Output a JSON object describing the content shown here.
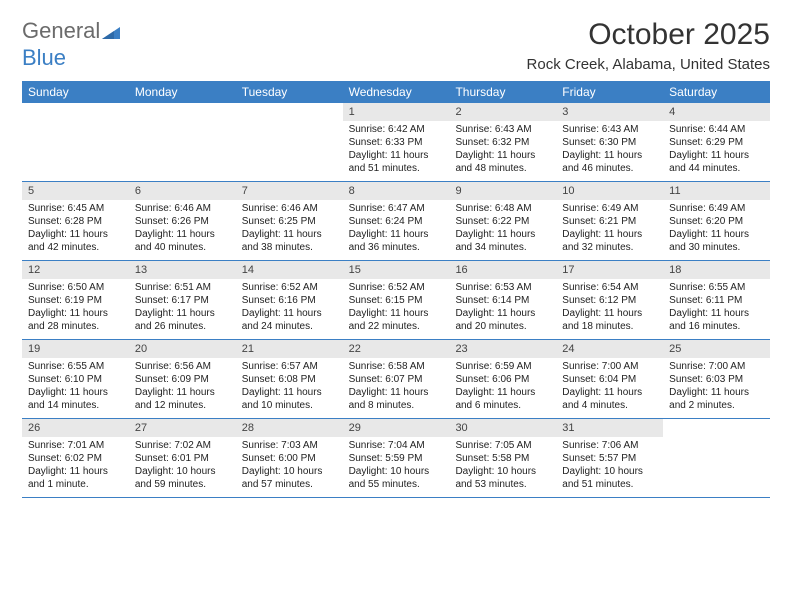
{
  "logo": {
    "text1": "General",
    "text2": "Blue",
    "text_color_1": "#6b6b6b",
    "text_color_2": "#3b7fc4",
    "triangle_color": "#3b7fc4"
  },
  "header": {
    "month_title": "October 2025",
    "location": "Rock Creek, Alabama, United States"
  },
  "colors": {
    "header_bg": "#3b7fc4",
    "header_fg": "#ffffff",
    "daynum_bg": "#e8e8e8",
    "row_border": "#3b7fc4",
    "text": "#222222"
  },
  "weekdays": [
    "Sunday",
    "Monday",
    "Tuesday",
    "Wednesday",
    "Thursday",
    "Friday",
    "Saturday"
  ],
  "weeks": [
    [
      {
        "empty": true
      },
      {
        "empty": true
      },
      {
        "empty": true
      },
      {
        "day": "1",
        "sunrise": "Sunrise: 6:42 AM",
        "sunset": "Sunset: 6:33 PM",
        "day1": "Daylight: 11 hours",
        "day2": "and 51 minutes."
      },
      {
        "day": "2",
        "sunrise": "Sunrise: 6:43 AM",
        "sunset": "Sunset: 6:32 PM",
        "day1": "Daylight: 11 hours",
        "day2": "and 48 minutes."
      },
      {
        "day": "3",
        "sunrise": "Sunrise: 6:43 AM",
        "sunset": "Sunset: 6:30 PM",
        "day1": "Daylight: 11 hours",
        "day2": "and 46 minutes."
      },
      {
        "day": "4",
        "sunrise": "Sunrise: 6:44 AM",
        "sunset": "Sunset: 6:29 PM",
        "day1": "Daylight: 11 hours",
        "day2": "and 44 minutes."
      }
    ],
    [
      {
        "day": "5",
        "sunrise": "Sunrise: 6:45 AM",
        "sunset": "Sunset: 6:28 PM",
        "day1": "Daylight: 11 hours",
        "day2": "and 42 minutes."
      },
      {
        "day": "6",
        "sunrise": "Sunrise: 6:46 AM",
        "sunset": "Sunset: 6:26 PM",
        "day1": "Daylight: 11 hours",
        "day2": "and 40 minutes."
      },
      {
        "day": "7",
        "sunrise": "Sunrise: 6:46 AM",
        "sunset": "Sunset: 6:25 PM",
        "day1": "Daylight: 11 hours",
        "day2": "and 38 minutes."
      },
      {
        "day": "8",
        "sunrise": "Sunrise: 6:47 AM",
        "sunset": "Sunset: 6:24 PM",
        "day1": "Daylight: 11 hours",
        "day2": "and 36 minutes."
      },
      {
        "day": "9",
        "sunrise": "Sunrise: 6:48 AM",
        "sunset": "Sunset: 6:22 PM",
        "day1": "Daylight: 11 hours",
        "day2": "and 34 minutes."
      },
      {
        "day": "10",
        "sunrise": "Sunrise: 6:49 AM",
        "sunset": "Sunset: 6:21 PM",
        "day1": "Daylight: 11 hours",
        "day2": "and 32 minutes."
      },
      {
        "day": "11",
        "sunrise": "Sunrise: 6:49 AM",
        "sunset": "Sunset: 6:20 PM",
        "day1": "Daylight: 11 hours",
        "day2": "and 30 minutes."
      }
    ],
    [
      {
        "day": "12",
        "sunrise": "Sunrise: 6:50 AM",
        "sunset": "Sunset: 6:19 PM",
        "day1": "Daylight: 11 hours",
        "day2": "and 28 minutes."
      },
      {
        "day": "13",
        "sunrise": "Sunrise: 6:51 AM",
        "sunset": "Sunset: 6:17 PM",
        "day1": "Daylight: 11 hours",
        "day2": "and 26 minutes."
      },
      {
        "day": "14",
        "sunrise": "Sunrise: 6:52 AM",
        "sunset": "Sunset: 6:16 PM",
        "day1": "Daylight: 11 hours",
        "day2": "and 24 minutes."
      },
      {
        "day": "15",
        "sunrise": "Sunrise: 6:52 AM",
        "sunset": "Sunset: 6:15 PM",
        "day1": "Daylight: 11 hours",
        "day2": "and 22 minutes."
      },
      {
        "day": "16",
        "sunrise": "Sunrise: 6:53 AM",
        "sunset": "Sunset: 6:14 PM",
        "day1": "Daylight: 11 hours",
        "day2": "and 20 minutes."
      },
      {
        "day": "17",
        "sunrise": "Sunrise: 6:54 AM",
        "sunset": "Sunset: 6:12 PM",
        "day1": "Daylight: 11 hours",
        "day2": "and 18 minutes."
      },
      {
        "day": "18",
        "sunrise": "Sunrise: 6:55 AM",
        "sunset": "Sunset: 6:11 PM",
        "day1": "Daylight: 11 hours",
        "day2": "and 16 minutes."
      }
    ],
    [
      {
        "day": "19",
        "sunrise": "Sunrise: 6:55 AM",
        "sunset": "Sunset: 6:10 PM",
        "day1": "Daylight: 11 hours",
        "day2": "and 14 minutes."
      },
      {
        "day": "20",
        "sunrise": "Sunrise: 6:56 AM",
        "sunset": "Sunset: 6:09 PM",
        "day1": "Daylight: 11 hours",
        "day2": "and 12 minutes."
      },
      {
        "day": "21",
        "sunrise": "Sunrise: 6:57 AM",
        "sunset": "Sunset: 6:08 PM",
        "day1": "Daylight: 11 hours",
        "day2": "and 10 minutes."
      },
      {
        "day": "22",
        "sunrise": "Sunrise: 6:58 AM",
        "sunset": "Sunset: 6:07 PM",
        "day1": "Daylight: 11 hours",
        "day2": "and 8 minutes."
      },
      {
        "day": "23",
        "sunrise": "Sunrise: 6:59 AM",
        "sunset": "Sunset: 6:06 PM",
        "day1": "Daylight: 11 hours",
        "day2": "and 6 minutes."
      },
      {
        "day": "24",
        "sunrise": "Sunrise: 7:00 AM",
        "sunset": "Sunset: 6:04 PM",
        "day1": "Daylight: 11 hours",
        "day2": "and 4 minutes."
      },
      {
        "day": "25",
        "sunrise": "Sunrise: 7:00 AM",
        "sunset": "Sunset: 6:03 PM",
        "day1": "Daylight: 11 hours",
        "day2": "and 2 minutes."
      }
    ],
    [
      {
        "day": "26",
        "sunrise": "Sunrise: 7:01 AM",
        "sunset": "Sunset: 6:02 PM",
        "day1": "Daylight: 11 hours",
        "day2": "and 1 minute."
      },
      {
        "day": "27",
        "sunrise": "Sunrise: 7:02 AM",
        "sunset": "Sunset: 6:01 PM",
        "day1": "Daylight: 10 hours",
        "day2": "and 59 minutes."
      },
      {
        "day": "28",
        "sunrise": "Sunrise: 7:03 AM",
        "sunset": "Sunset: 6:00 PM",
        "day1": "Daylight: 10 hours",
        "day2": "and 57 minutes."
      },
      {
        "day": "29",
        "sunrise": "Sunrise: 7:04 AM",
        "sunset": "Sunset: 5:59 PM",
        "day1": "Daylight: 10 hours",
        "day2": "and 55 minutes."
      },
      {
        "day": "30",
        "sunrise": "Sunrise: 7:05 AM",
        "sunset": "Sunset: 5:58 PM",
        "day1": "Daylight: 10 hours",
        "day2": "and 53 minutes."
      },
      {
        "day": "31",
        "sunrise": "Sunrise: 7:06 AM",
        "sunset": "Sunset: 5:57 PM",
        "day1": "Daylight: 10 hours",
        "day2": "and 51 minutes."
      },
      {
        "empty": true
      }
    ]
  ]
}
